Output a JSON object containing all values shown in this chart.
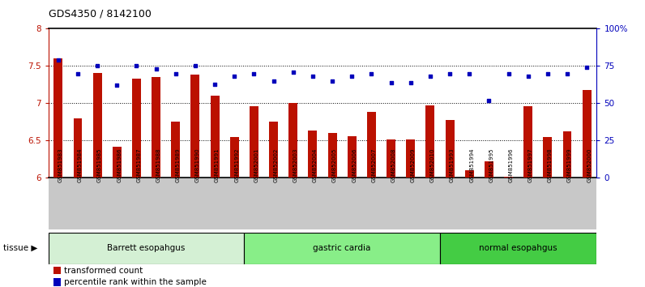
{
  "title": "GDS4350 / 8142100",
  "samples": [
    "GSM851983",
    "GSM851984",
    "GSM851985",
    "GSM851986",
    "GSM851987",
    "GSM851988",
    "GSM851989",
    "GSM851990",
    "GSM851991",
    "GSM851992",
    "GSM852001",
    "GSM852002",
    "GSM852003",
    "GSM852004",
    "GSM852005",
    "GSM852006",
    "GSM852007",
    "GSM852008",
    "GSM852009",
    "GSM852010",
    "GSM851993",
    "GSM851994",
    "GSM851995",
    "GSM851996",
    "GSM851997",
    "GSM851998",
    "GSM851999",
    "GSM852000"
  ],
  "bar_values": [
    7.6,
    6.8,
    7.41,
    6.42,
    7.33,
    7.35,
    6.75,
    7.38,
    7.1,
    6.55,
    6.96,
    6.75,
    7.0,
    6.63,
    6.6,
    6.56,
    6.88,
    6.52,
    6.52,
    6.97,
    6.78,
    6.1,
    6.22,
    6.02,
    6.96,
    6.55,
    6.62,
    7.18
  ],
  "dot_values": [
    79,
    70,
    75,
    62,
    75,
    73,
    70,
    75,
    63,
    68,
    70,
    65,
    71,
    68,
    65,
    68,
    70,
    64,
    64,
    68,
    70,
    70,
    52,
    70,
    68,
    70,
    70,
    74
  ],
  "groups": [
    {
      "label": "Barrett esopahgus",
      "start": 0,
      "end": 9,
      "color": "#d4f0d4"
    },
    {
      "label": "gastric cardia",
      "start": 10,
      "end": 19,
      "color": "#88ee88"
    },
    {
      "label": "normal esopahgus",
      "start": 20,
      "end": 27,
      "color": "#44cc44"
    }
  ],
  "ylim": [
    6.0,
    8.0
  ],
  "yticks": [
    6.0,
    6.5,
    7.0,
    7.5,
    8.0
  ],
  "ytick_labels": [
    "6",
    "6.5",
    "7",
    "7.5",
    "8"
  ],
  "right_yticks": [
    0,
    25,
    50,
    75,
    100
  ],
  "right_yticklabels": [
    "0",
    "25",
    "50",
    "75",
    "100%"
  ],
  "bar_color": "#bb1100",
  "dot_color": "#0000bb",
  "bg_color": "#ffffff",
  "xtick_bg": "#c8c8c8",
  "title_fontsize": 9,
  "bar_width": 0.45
}
